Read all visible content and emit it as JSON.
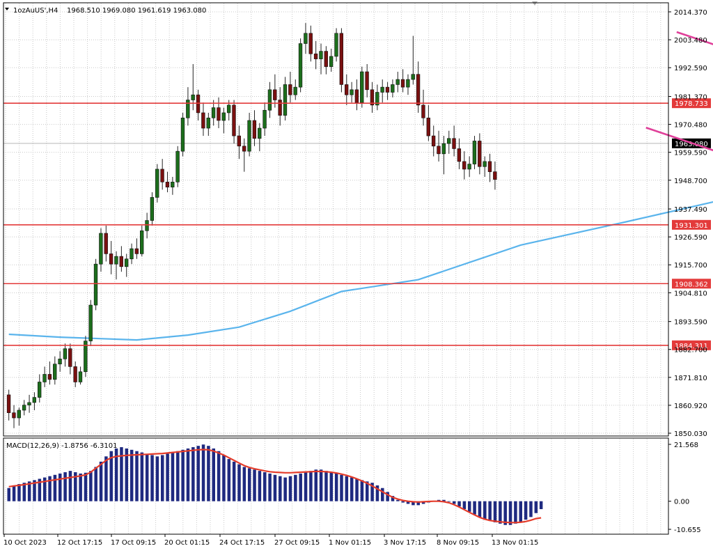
{
  "header": {
    "symbol": "1ozAuUS',H4",
    "ohlc": "1968.510 1969.080 1961.619 1963.080"
  },
  "macd_header": {
    "label": "MACD(12,26,9) -1.8756 -6.3101"
  },
  "colors": {
    "background": "#ffffff",
    "grid": "#c8c8c8",
    "candle_up": "#1c6e1c",
    "candle_down": "#7a1010",
    "candle_wick": "#222222",
    "moving_average": "#5ab4ec",
    "level_line": "#e33a3a",
    "level_tag_bg": "#e33a3a",
    "level_tag_text": "#ffffff",
    "channel": "#e0409a",
    "current_tag_bg": "#000000",
    "macd_hist": "#1f2a80",
    "macd_signal": "#e53c2a",
    "axis_text": "#000000"
  },
  "chart_data": [
    {
      "type": "candlestick",
      "symbol": "1ozAuUS'",
      "timeframe": "H4",
      "current_price": 1963.08,
      "y_ticks": [
        2014.37,
        2003.48,
        1992.59,
        1981.37,
        1970.48,
        1959.59,
        1948.7,
        1937.49,
        1926.59,
        1915.7,
        1904.81,
        1893.59,
        1882.7,
        1871.81,
        1860.92,
        1850.03
      ],
      "ylim": [
        1850.03,
        2014.37
      ],
      "x_tick_labels": [
        "10 Oct 2023",
        "12 Oct 17:15",
        "17 Oct 09:15",
        "20 Oct 01:15",
        "24 Oct 17:15",
        "27 Oct 09:15",
        "1 Nov 01:15",
        "3 Nov 17:15",
        "8 Nov 09:15",
        "13 Nov 01:15"
      ],
      "horizontal_levels": [
        1978.733,
        1931.301,
        1908.362,
        1884.311
      ],
      "channel": {
        "upper": {
          "from": {
            "bar": 131,
            "price": 2006.5
          },
          "to": {
            "bar": 237,
            "price": 1935.5
          }
        },
        "lower": {
          "from": {
            "bar": 125,
            "price": 1969.2
          },
          "to": {
            "bar": 237,
            "price": 1893.7
          }
        }
      },
      "moving_average": [
        {
          "bar": 0,
          "price": 1888.6
        },
        {
          "bar": 10,
          "price": 1887.5
        },
        {
          "bar": 25,
          "price": 1886.4
        },
        {
          "bar": 35,
          "price": 1888.3
        },
        {
          "bar": 45,
          "price": 1891.4
        },
        {
          "bar": 55,
          "price": 1897.6
        },
        {
          "bar": 65,
          "price": 1905.3
        },
        {
          "bar": 80,
          "price": 1909.9
        },
        {
          "bar": 100,
          "price": 1923.4
        },
        {
          "bar": 120,
          "price": 1932.2
        },
        {
          "bar": 140,
          "price": 1941.3
        },
        {
          "bar": 160,
          "price": 1944.9
        },
        {
          "bar": 175,
          "price": 1945.6
        },
        {
          "bar": 190,
          "price": 1945.3
        }
      ],
      "candles": [
        {
          "o": 1865.0,
          "h": 1867.0,
          "l": 1855.0,
          "c": 1858.0
        },
        {
          "o": 1858.0,
          "h": 1861.0,
          "l": 1852.0,
          "c": 1856.0
        },
        {
          "o": 1856.0,
          "h": 1860.0,
          "l": 1853.0,
          "c": 1859.0
        },
        {
          "o": 1859.0,
          "h": 1863.0,
          "l": 1857.0,
          "c": 1861.0
        },
        {
          "o": 1861.0,
          "h": 1865.0,
          "l": 1858.0,
          "c": 1862.0
        },
        {
          "o": 1862.0,
          "h": 1866.0,
          "l": 1859.0,
          "c": 1864.0
        },
        {
          "o": 1864.0,
          "h": 1873.0,
          "l": 1862.0,
          "c": 1870.0
        },
        {
          "o": 1870.0,
          "h": 1876.0,
          "l": 1868.0,
          "c": 1873.0
        },
        {
          "o": 1873.0,
          "h": 1878.0,
          "l": 1869.0,
          "c": 1871.0
        },
        {
          "o": 1871.0,
          "h": 1880.0,
          "l": 1869.0,
          "c": 1877.0
        },
        {
          "o": 1877.0,
          "h": 1882.0,
          "l": 1874.0,
          "c": 1879.0
        },
        {
          "o": 1879.0,
          "h": 1885.0,
          "l": 1876.0,
          "c": 1883.0
        },
        {
          "o": 1883.0,
          "h": 1885.0,
          "l": 1873.0,
          "c": 1876.0
        },
        {
          "o": 1876.0,
          "h": 1878.0,
          "l": 1868.0,
          "c": 1870.0
        },
        {
          "o": 1870.0,
          "h": 1876.0,
          "l": 1869.0,
          "c": 1874.0
        },
        {
          "o": 1874.0,
          "h": 1888.0,
          "l": 1872.0,
          "c": 1886.0
        },
        {
          "o": 1886.0,
          "h": 1902.0,
          "l": 1884.0,
          "c": 1900.0
        },
        {
          "o": 1900.0,
          "h": 1918.0,
          "l": 1898.0,
          "c": 1916.0
        },
        {
          "o": 1916.0,
          "h": 1930.0,
          "l": 1913.0,
          "c": 1928.0
        },
        {
          "o": 1928.0,
          "h": 1931.0,
          "l": 1917.0,
          "c": 1920.0
        },
        {
          "o": 1920.0,
          "h": 1925.0,
          "l": 1912.0,
          "c": 1916.0
        },
        {
          "o": 1916.0,
          "h": 1921.0,
          "l": 1910.0,
          "c": 1919.0
        },
        {
          "o": 1919.0,
          "h": 1923.0,
          "l": 1913.0,
          "c": 1915.0
        },
        {
          "o": 1915.0,
          "h": 1920.0,
          "l": 1911.0,
          "c": 1918.0
        },
        {
          "o": 1918.0,
          "h": 1924.0,
          "l": 1916.0,
          "c": 1922.0
        },
        {
          "o": 1922.0,
          "h": 1926.0,
          "l": 1918.0,
          "c": 1920.0
        },
        {
          "o": 1920.0,
          "h": 1931.0,
          "l": 1919.0,
          "c": 1929.0
        },
        {
          "o": 1929.0,
          "h": 1936.0,
          "l": 1926.0,
          "c": 1933.0
        },
        {
          "o": 1933.0,
          "h": 1944.0,
          "l": 1931.0,
          "c": 1942.0
        },
        {
          "o": 1942.0,
          "h": 1955.0,
          "l": 1940.0,
          "c": 1953.0
        },
        {
          "o": 1953.0,
          "h": 1957.0,
          "l": 1945.0,
          "c": 1948.0
        },
        {
          "o": 1948.0,
          "h": 1952.0,
          "l": 1944.0,
          "c": 1946.0
        },
        {
          "o": 1946.0,
          "h": 1950.0,
          "l": 1943.0,
          "c": 1948.0
        },
        {
          "o": 1948.0,
          "h": 1962.0,
          "l": 1946.0,
          "c": 1960.0
        },
        {
          "o": 1960.0,
          "h": 1975.0,
          "l": 1958.0,
          "c": 1973.0
        },
        {
          "o": 1973.0,
          "h": 1985.0,
          "l": 1970.0,
          "c": 1980.0
        },
        {
          "o": 1980.0,
          "h": 1994.0,
          "l": 1976.0,
          "c": 1982.0
        },
        {
          "o": 1982.0,
          "h": 1984.0,
          "l": 1972.0,
          "c": 1975.0
        },
        {
          "o": 1975.0,
          "h": 1979.0,
          "l": 1966.0,
          "c": 1969.0
        },
        {
          "o": 1969.0,
          "h": 1975.0,
          "l": 1966.0,
          "c": 1973.0
        },
        {
          "o": 1973.0,
          "h": 1980.0,
          "l": 1970.0,
          "c": 1977.0
        },
        {
          "o": 1977.0,
          "h": 1981.0,
          "l": 1969.0,
          "c": 1972.0
        },
        {
          "o": 1972.0,
          "h": 1977.0,
          "l": 1967.0,
          "c": 1975.0
        },
        {
          "o": 1975.0,
          "h": 1980.0,
          "l": 1972.0,
          "c": 1978.0
        },
        {
          "o": 1978.0,
          "h": 1980.0,
          "l": 1963.0,
          "c": 1966.0
        },
        {
          "o": 1966.0,
          "h": 1970.0,
          "l": 1957.0,
          "c": 1962.0
        },
        {
          "o": 1962.0,
          "h": 1965.0,
          "l": 1952.0,
          "c": 1960.0
        },
        {
          "o": 1960.0,
          "h": 1975.0,
          "l": 1958.0,
          "c": 1972.0
        },
        {
          "o": 1972.0,
          "h": 1976.0,
          "l": 1962.0,
          "c": 1965.0
        },
        {
          "o": 1965.0,
          "h": 1971.0,
          "l": 1960.0,
          "c": 1969.0
        },
        {
          "o": 1969.0,
          "h": 1979.0,
          "l": 1966.0,
          "c": 1976.0
        },
        {
          "o": 1976.0,
          "h": 1987.0,
          "l": 1973.0,
          "c": 1984.0
        },
        {
          "o": 1984.0,
          "h": 1990.0,
          "l": 1977.0,
          "c": 1980.0
        },
        {
          "o": 1980.0,
          "h": 1985.0,
          "l": 1970.0,
          "c": 1974.0
        },
        {
          "o": 1974.0,
          "h": 1989.0,
          "l": 1972.0,
          "c": 1986.0
        },
        {
          "o": 1986.0,
          "h": 1991.0,
          "l": 1979.0,
          "c": 1982.0
        },
        {
          "o": 1982.0,
          "h": 1988.0,
          "l": 1980.0,
          "c": 1985.0
        },
        {
          "o": 1985.0,
          "h": 2004.0,
          "l": 1983.0,
          "c": 2002.0
        },
        {
          "o": 2002.0,
          "h": 2010.0,
          "l": 1998.0,
          "c": 2006.0
        },
        {
          "o": 2006.0,
          "h": 2009.0,
          "l": 1995.0,
          "c": 1998.0
        },
        {
          "o": 1998.0,
          "h": 2003.0,
          "l": 1992.0,
          "c": 1996.0
        },
        {
          "o": 1996.0,
          "h": 2002.0,
          "l": 1990.0,
          "c": 1999.0
        },
        {
          "o": 1999.0,
          "h": 2001.0,
          "l": 1990.0,
          "c": 1993.0
        },
        {
          "o": 1993.0,
          "h": 2000.0,
          "l": 1991.0,
          "c": 1997.0
        },
        {
          "o": 1997.0,
          "h": 2008.0,
          "l": 1995.0,
          "c": 2006.0
        },
        {
          "o": 2006.0,
          "h": 2008.0,
          "l": 1983.0,
          "c": 1986.0
        },
        {
          "o": 1986.0,
          "h": 1990.0,
          "l": 1978.0,
          "c": 1982.0
        },
        {
          "o": 1982.0,
          "h": 1987.0,
          "l": 1979.0,
          "c": 1984.0
        },
        {
          "o": 1984.0,
          "h": 1988.0,
          "l": 1976.0,
          "c": 1979.0
        },
        {
          "o": 1979.0,
          "h": 1993.0,
          "l": 1977.0,
          "c": 1991.0
        },
        {
          "o": 1991.0,
          "h": 1994.0,
          "l": 1981.0,
          "c": 1984.0
        },
        {
          "o": 1984.0,
          "h": 1987.0,
          "l": 1975.0,
          "c": 1978.0
        },
        {
          "o": 1978.0,
          "h": 1986.0,
          "l": 1976.0,
          "c": 1983.0
        },
        {
          "o": 1983.0,
          "h": 1988.0,
          "l": 1979.0,
          "c": 1985.0
        },
        {
          "o": 1985.0,
          "h": 1987.0,
          "l": 1980.0,
          "c": 1983.0
        },
        {
          "o": 1983.0,
          "h": 1988.0,
          "l": 1981.0,
          "c": 1986.0
        },
        {
          "o": 1986.0,
          "h": 1991.0,
          "l": 1983.0,
          "c": 1988.0
        },
        {
          "o": 1988.0,
          "h": 1992.0,
          "l": 1983.0,
          "c": 1985.0
        },
        {
          "o": 1985.0,
          "h": 1990.0,
          "l": 1982.0,
          "c": 1988.0
        },
        {
          "o": 1988.0,
          "h": 2005.0,
          "l": 1986.0,
          "c": 1990.0
        },
        {
          "o": 1990.0,
          "h": 1995.0,
          "l": 1975.0,
          "c": 1978.0
        },
        {
          "o": 1978.0,
          "h": 1984.0,
          "l": 1970.0,
          "c": 1973.0
        },
        {
          "o": 1973.0,
          "h": 1978.0,
          "l": 1964.0,
          "c": 1966.0
        },
        {
          "o": 1966.0,
          "h": 1970.0,
          "l": 1958.0,
          "c": 1962.0
        },
        {
          "o": 1962.0,
          "h": 1968.0,
          "l": 1956.0,
          "c": 1959.0
        },
        {
          "o": 1959.0,
          "h": 1966.0,
          "l": 1951.0,
          "c": 1963.0
        },
        {
          "o": 1963.0,
          "h": 1968.0,
          "l": 1959.0,
          "c": 1965.0
        },
        {
          "o": 1965.0,
          "h": 1970.0,
          "l": 1958.0,
          "c": 1961.0
        },
        {
          "o": 1961.0,
          "h": 1965.0,
          "l": 1953.0,
          "c": 1956.0
        },
        {
          "o": 1956.0,
          "h": 1960.0,
          "l": 1949.0,
          "c": 1953.0
        },
        {
          "o": 1953.0,
          "h": 1958.0,
          "l": 1950.0,
          "c": 1955.0
        },
        {
          "o": 1955.0,
          "h": 1966.0,
          "l": 1953.0,
          "c": 1964.0
        },
        {
          "o": 1964.0,
          "h": 1967.0,
          "l": 1951.0,
          "c": 1954.0
        },
        {
          "o": 1954.0,
          "h": 1958.0,
          "l": 1950.0,
          "c": 1956.0
        },
        {
          "o": 1956.0,
          "h": 1959.0,
          "l": 1948.0,
          "c": 1952.0
        },
        {
          "o": 1952.0,
          "h": 1956.0,
          "l": 1945.0,
          "c": 1949.0
        }
      ],
      "macd": {
        "label": "MACD(12,26,9)",
        "main": -1.8756,
        "signal": -6.3101,
        "y_ticks": [
          21.568,
          0.0,
          -10.655
        ],
        "ylim": [
          -10.655,
          21.568
        ],
        "histogram": [
          5.0,
          6.0,
          6.5,
          7.0,
          7.5,
          8.0,
          8.5,
          9.0,
          9.5,
          10.0,
          10.5,
          11.0,
          11.5,
          11.0,
          10.5,
          10.8,
          11.5,
          13.0,
          15.0,
          17.0,
          19.0,
          20.0,
          20.5,
          20.0,
          19.5,
          19.0,
          18.5,
          18.0,
          17.5,
          17.0,
          17.5,
          18.0,
          18.5,
          19.0,
          19.5,
          20.0,
          20.5,
          21.0,
          21.5,
          21.0,
          20.0,
          19.0,
          17.5,
          16.0,
          15.0,
          14.0,
          13.0,
          12.5,
          12.0,
          11.5,
          11.0,
          10.5,
          10.0,
          9.5,
          9.0,
          9.5,
          10.0,
          10.5,
          11.0,
          11.5,
          12.0,
          12.0,
          11.5,
          11.0,
          10.5,
          10.0,
          9.5,
          9.0,
          8.5,
          8.0,
          7.5,
          7.0,
          6.0,
          5.0,
          3.5,
          2.0,
          0.5,
          -0.5,
          -1.0,
          -1.5,
          -1.5,
          -1.0,
          -0.5,
          0.0,
          0.5,
          0.5,
          0.0,
          -1.0,
          -2.0,
          -3.0,
          -4.0,
          -5.0,
          -6.0,
          -7.0,
          -7.5,
          -8.0,
          -8.5,
          -9.0,
          -9.0,
          -8.5,
          -8.0,
          -7.0,
          -6.0,
          -4.5,
          -3.0
        ],
        "signal_line": [
          5.5,
          5.8,
          6.0,
          6.3,
          6.6,
          6.9,
          7.2,
          7.5,
          7.8,
          8.1,
          8.4,
          8.7,
          9.0,
          9.3,
          9.6,
          10.0,
          11.0,
          12.5,
          14.0,
          15.5,
          16.5,
          17.0,
          17.2,
          17.4,
          17.5,
          17.6,
          17.7,
          17.8,
          17.9,
          18.0,
          18.1,
          18.3,
          18.5,
          18.7,
          18.9,
          19.1,
          19.3,
          19.5,
          19.6,
          19.5,
          19.0,
          18.3,
          17.5,
          16.5,
          15.5,
          14.5,
          13.5,
          12.8,
          12.3,
          11.9,
          11.5,
          11.2,
          11.0,
          10.9,
          10.8,
          10.8,
          10.9,
          11.0,
          11.1,
          11.2,
          11.3,
          11.3,
          11.2,
          11.0,
          10.7,
          10.3,
          9.8,
          9.2,
          8.5,
          7.7,
          6.8,
          5.8,
          4.7,
          3.6,
          2.5,
          1.5,
          0.8,
          0.3,
          0.0,
          -0.2,
          -0.3,
          -0.2,
          -0.1,
          0.0,
          0.0,
          -0.2,
          -0.6,
          -1.3,
          -2.2,
          -3.2,
          -4.2,
          -5.2,
          -6.1,
          -6.8,
          -7.3,
          -7.6,
          -7.8,
          -8.0,
          -8.1,
          -8.1,
          -8.0,
          -7.7,
          -7.2,
          -6.6,
          -6.3
        ]
      }
    }
  ]
}
